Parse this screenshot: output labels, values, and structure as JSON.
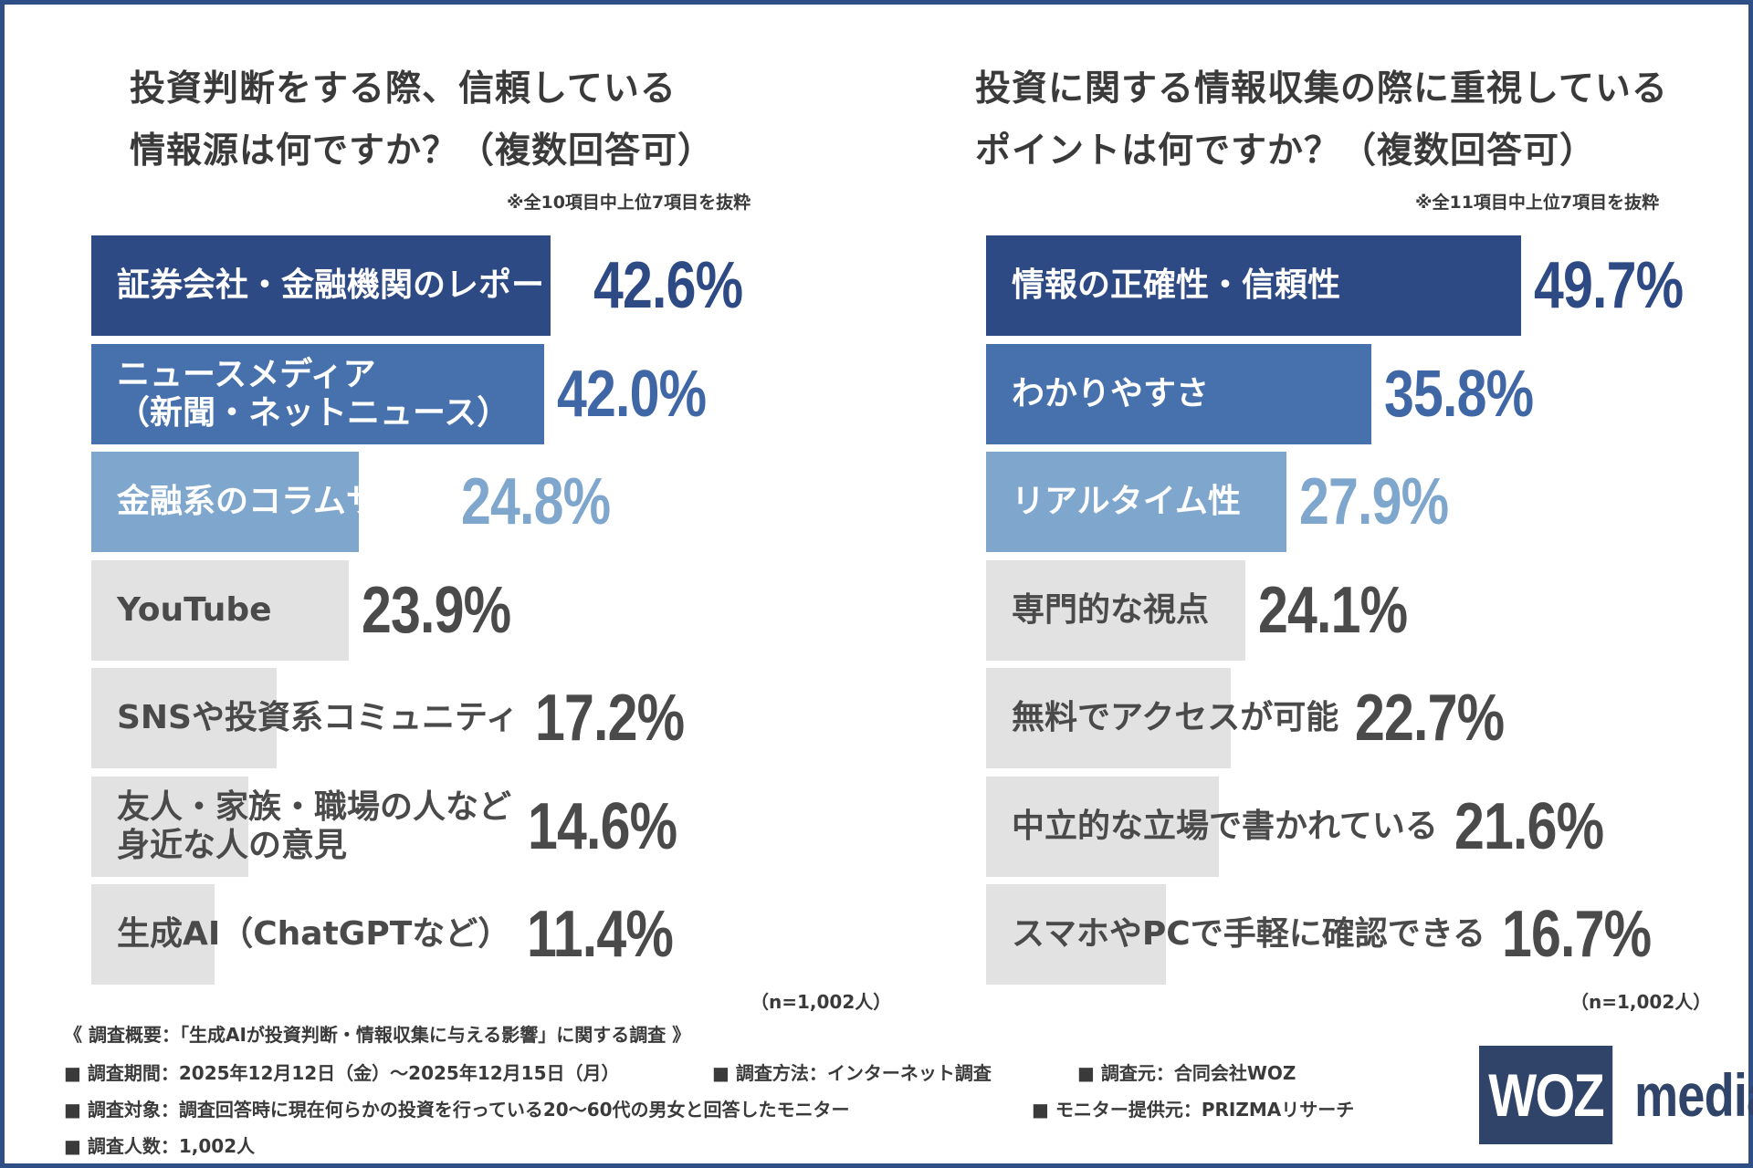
{
  "colors": {
    "tier1": "#2e4a84",
    "tier2": "#4671ad",
    "tier3": "#7fa6cc",
    "rest": "#e2e2e2",
    "value1": "#2e4a84",
    "value2": "#3f66a5",
    "value3": "#7fa6cc",
    "value_rest": "#4a4a4a",
    "label_light": "#ffffff",
    "label_dark": "#4a4a4a"
  },
  "chart_data": [
    {
      "type": "bar",
      "orientation": "horizontal",
      "title_lines": [
        "投資判断をする際、信頼している",
        "情報源は何ですか？（複数回答可）"
      ],
      "note": "※全10項目中上位7項目を抜粋",
      "unit": "%",
      "xlim": [
        0,
        50
      ],
      "categories": [
        [
          "証券会社・金融機関のレポート"
        ],
        [
          "ニュースメディア",
          "（新聞・ネットニュース）"
        ],
        [
          "金融系のコラムサイト"
        ],
        [
          "YouTube"
        ],
        [
          "SNSや投資系コミュニティ"
        ],
        [
          "友人・家族・職場の人など",
          "身近な人の意見"
        ],
        [
          "生成AI（ChatGPTなど）"
        ]
      ],
      "values": [
        42.6,
        42.0,
        24.8,
        23.9,
        17.2,
        14.6,
        11.4
      ],
      "value_labels": [
        "42.6%",
        "42.0%",
        "24.8%",
        "23.9%",
        "17.2%",
        "14.6%",
        "11.4%"
      ],
      "n_note": "（n=1,002人）"
    },
    {
      "type": "bar",
      "orientation": "horizontal",
      "title_lines": [
        "投資に関する情報収集の際に重視している",
        "ポイントは何ですか？（複数回答可）"
      ],
      "note": "※全11項目中上位7項目を抜粋",
      "unit": "%",
      "xlim": [
        0,
        50
      ],
      "categories": [
        [
          "情報の正確性・信頼性"
        ],
        [
          "わかりやすさ"
        ],
        [
          "リアルタイム性"
        ],
        [
          "専門的な視点"
        ],
        [
          "無料でアクセスが可能"
        ],
        [
          "中立的な立場で書かれている"
        ],
        [
          "スマホやPCで手軽に確認できる"
        ]
      ],
      "values": [
        49.7,
        35.8,
        27.9,
        24.1,
        22.7,
        21.6,
        16.7
      ],
      "value_labels": [
        "49.7%",
        "35.8%",
        "27.9%",
        "24.1%",
        "22.7%",
        "21.6%",
        "16.7%"
      ],
      "n_note": "（n=1,002人）"
    }
  ],
  "footer": {
    "line1": "《 調査概要：「生成AIが投資判断・情報収集に与える影響」に関する調査 》",
    "period": "■ 調査期間：2025年12月12日（金）～2025年12月15日（月）",
    "method": "■ 調査方法：インターネット調査",
    "source": "■ 調査元：合同会社WOZ",
    "target": "■ 調査対象：調査回答時に現在何らかの投資を行っている20～60代の男女と回答したモニター",
    "provider": "■ モニター提供元：PRIZMAリサーチ",
    "count": "■ 調査人数：1,002人"
  },
  "logo": {
    "box_text": "WOZ",
    "text": "media"
  }
}
